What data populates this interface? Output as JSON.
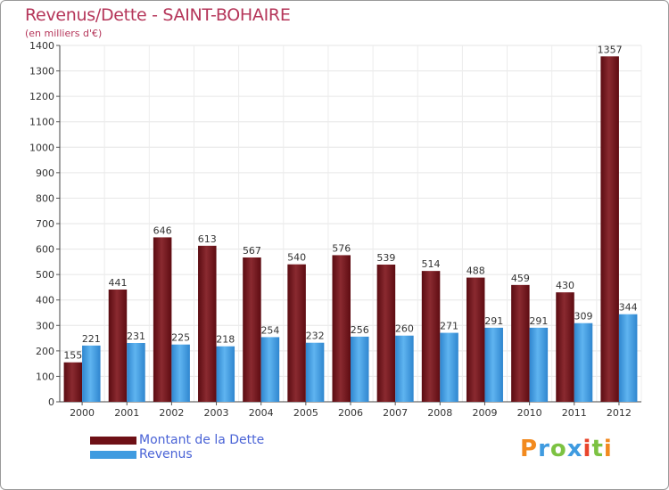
{
  "header": {
    "title": "Revenus/Dette - SAINT-BOHAIRE",
    "subtitle": "(en milliers d'€)"
  },
  "legend": {
    "items": [
      {
        "label": "Montant de la Dette",
        "color": "#6e1016"
      },
      {
        "label": "Revenus",
        "color": "#3f9be0"
      }
    ]
  },
  "logo": {
    "letters": [
      "P",
      "r",
      "o",
      "x",
      "i",
      "t",
      "i"
    ],
    "colors": [
      "#f28a1e",
      "#3f9be0",
      "#7cc242",
      "#3f9be0",
      "#e8452c",
      "#7cc242",
      "#f28a1e"
    ]
  },
  "chart_data": {
    "type": "bar",
    "title": "Revenus/Dette - SAINT-BOHAIRE",
    "subtitle": "(en milliers d'€)",
    "categories": [
      "2000",
      "2001",
      "2002",
      "2003",
      "2004",
      "2005",
      "2006",
      "2007",
      "2008",
      "2009",
      "2010",
      "2011",
      "2012"
    ],
    "series": [
      {
        "name": "Montant de la Dette",
        "color": "#6e1016",
        "values": [
          155,
          441,
          646,
          613,
          567,
          540,
          576,
          539,
          514,
          488,
          459,
          430,
          1357
        ]
      },
      {
        "name": "Revenus",
        "color": "#3f9be0",
        "values": [
          221,
          231,
          225,
          218,
          254,
          232,
          256,
          260,
          271,
          291,
          291,
          309,
          344
        ]
      }
    ],
    "ylim": [
      0,
      1400
    ],
    "yticks": [
      0,
      100,
      200,
      300,
      400,
      500,
      600,
      700,
      800,
      900,
      1000,
      1100,
      1200,
      1300,
      1400
    ],
    "grid": true,
    "legend_position": "bottom-left"
  }
}
